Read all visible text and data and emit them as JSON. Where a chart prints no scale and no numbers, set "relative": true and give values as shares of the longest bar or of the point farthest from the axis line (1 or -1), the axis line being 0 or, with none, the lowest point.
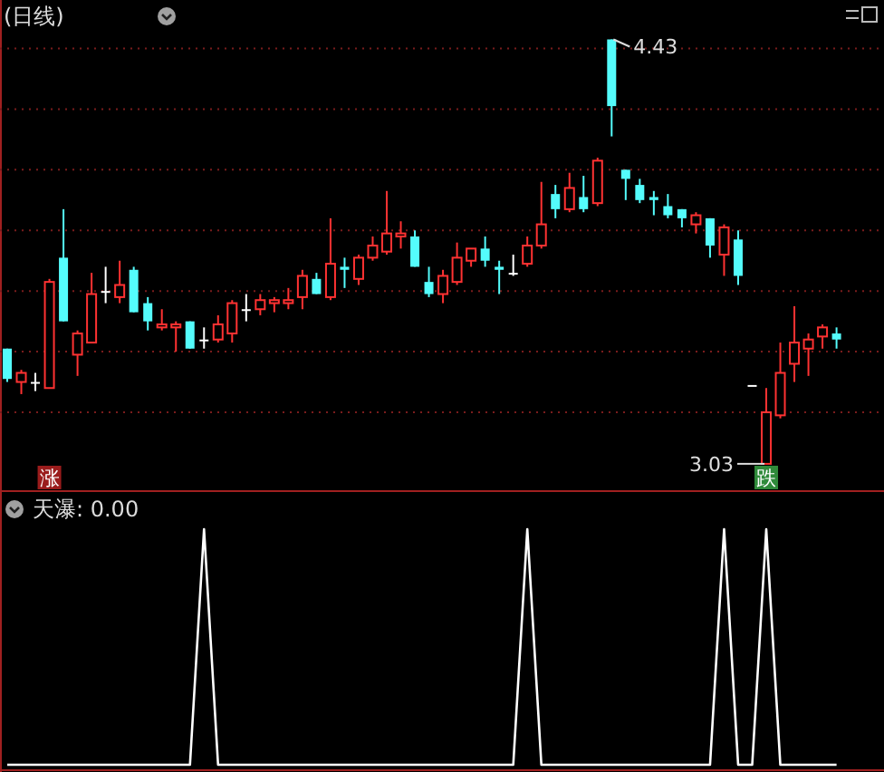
{
  "chart_data": [
    {
      "type": "candlestick",
      "title": "(日线)",
      "categories": [
        null,
        null,
        null,
        null,
        null,
        null,
        null,
        null,
        null,
        null,
        null,
        null,
        null,
        null,
        null,
        null,
        null,
        null,
        null,
        null,
        null,
        null,
        null,
        null,
        null,
        null,
        null,
        null,
        null,
        null,
        null,
        null,
        null,
        null,
        null,
        null,
        null,
        null,
        null,
        null,
        null,
        null,
        null,
        null,
        null,
        null,
        null,
        null,
        null,
        null,
        null,
        null,
        null,
        null,
        null,
        null,
        null,
        null,
        null,
        null
      ],
      "ohlc": [
        [
          3.41,
          3.41,
          3.3,
          3.31
        ],
        [
          3.3,
          3.34,
          3.26,
          3.33
        ],
        [
          3.3,
          3.33,
          3.27,
          3.3
        ],
        [
          3.28,
          3.64,
          3.28,
          3.63
        ],
        [
          3.71,
          3.87,
          3.5,
          3.5
        ],
        [
          3.39,
          3.47,
          3.32,
          3.46
        ],
        [
          3.43,
          3.66,
          3.43,
          3.59
        ],
        [
          3.6,
          3.68,
          3.56,
          3.6
        ],
        [
          3.58,
          3.7,
          3.56,
          3.62
        ],
        [
          3.67,
          3.68,
          3.53,
          3.53
        ],
        [
          3.56,
          3.58,
          3.47,
          3.5
        ],
        [
          3.48,
          3.54,
          3.47,
          3.49
        ],
        [
          3.48,
          3.5,
          3.4,
          3.49
        ],
        [
          3.5,
          3.5,
          3.41,
          3.41
        ],
        [
          3.44,
          3.48,
          3.41,
          3.44
        ],
        [
          3.44,
          3.52,
          3.43,
          3.49
        ],
        [
          3.46,
          3.57,
          3.43,
          3.56
        ],
        [
          3.54,
          3.59,
          3.5,
          3.54
        ],
        [
          3.54,
          3.59,
          3.52,
          3.57
        ],
        [
          3.56,
          3.58,
          3.53,
          3.57
        ],
        [
          3.56,
          3.61,
          3.54,
          3.57
        ],
        [
          3.58,
          3.67,
          3.54,
          3.65
        ],
        [
          3.64,
          3.66,
          3.59,
          3.59
        ],
        [
          3.58,
          3.84,
          3.57,
          3.69
        ],
        [
          3.68,
          3.71,
          3.61,
          3.67
        ],
        [
          3.64,
          3.72,
          3.62,
          3.71
        ],
        [
          3.71,
          3.78,
          3.7,
          3.75
        ],
        [
          3.73,
          3.93,
          3.72,
          3.79
        ],
        [
          3.78,
          3.83,
          3.74,
          3.79
        ],
        [
          3.78,
          3.8,
          3.68,
          3.68
        ],
        [
          3.63,
          3.68,
          3.58,
          3.59
        ],
        [
          3.59,
          3.67,
          3.56,
          3.65
        ],
        [
          3.63,
          3.76,
          3.62,
          3.71
        ],
        [
          3.7,
          3.74,
          3.68,
          3.74
        ],
        [
          3.74,
          3.78,
          3.68,
          3.7
        ],
        [
          3.68,
          3.7,
          3.59,
          3.67
        ],
        [
          3.66,
          3.72,
          3.65,
          3.66
        ],
        [
          3.69,
          3.78,
          3.68,
          3.75
        ],
        [
          3.75,
          3.96,
          3.74,
          3.82
        ],
        [
          3.92,
          3.95,
          3.84,
          3.87
        ],
        [
          3.87,
          3.99,
          3.86,
          3.94
        ],
        [
          3.91,
          3.98,
          3.86,
          3.87
        ],
        [
          3.89,
          4.04,
          3.88,
          4.03
        ],
        [
          4.43,
          4.43,
          4.11,
          4.21
        ],
        [
          4.0,
          4.0,
          3.9,
          3.97
        ],
        [
          3.95,
          3.97,
          3.89,
          3.9
        ],
        [
          3.91,
          3.93,
          3.85,
          3.9
        ],
        [
          3.88,
          3.92,
          3.84,
          3.85
        ],
        [
          3.87,
          3.87,
          3.81,
          3.84
        ],
        [
          3.82,
          3.86,
          3.79,
          3.85
        ],
        [
          3.84,
          3.84,
          3.71,
          3.75
        ],
        [
          3.72,
          3.82,
          3.65,
          3.81
        ],
        [
          3.77,
          3.8,
          3.62,
          3.65
        ],
        [
          3.29,
          3.29,
          3.29,
          3.29
        ],
        [
          3.03,
          3.28,
          3.03,
          3.2
        ],
        [
          3.19,
          3.43,
          3.18,
          3.33
        ],
        [
          3.36,
          3.55,
          3.3,
          3.43
        ],
        [
          3.41,
          3.46,
          3.32,
          3.44
        ],
        [
          3.45,
          3.49,
          3.41,
          3.48
        ],
        [
          3.46,
          3.48,
          3.41,
          3.44
        ]
      ],
      "colors": [
        "#54fcfc",
        "#ff3232",
        "#ffffff",
        "#ff3232",
        "#54fcfc",
        "#ff3232",
        "#ff3232",
        "#ffffff",
        "#ff3232",
        "#54fcfc",
        "#54fcfc",
        "#ff3232",
        "#ff3232",
        "#54fcfc",
        "#ffffff",
        "#ff3232",
        "#ff3232",
        "#ffffff",
        "#ff3232",
        "#ff3232",
        "#ff3232",
        "#ff3232",
        "#54fcfc",
        "#ff3232",
        "#54fcfc",
        "#ff3232",
        "#ff3232",
        "#ff3232",
        "#ff3232",
        "#54fcfc",
        "#54fcfc",
        "#ff3232",
        "#ff3232",
        "#ff3232",
        "#54fcfc",
        "#54fcfc",
        "#ffffff",
        "#ff3232",
        "#ff3232",
        "#54fcfc",
        "#ff3232",
        "#54fcfc",
        "#ff3232",
        "#54fcfc",
        "#54fcfc",
        "#54fcfc",
        "#54fcfc",
        "#54fcfc",
        "#54fcfc",
        "#ff3232",
        "#54fcfc",
        "#ff3232",
        "#54fcfc",
        "#ffffff",
        "#ff3232",
        "#ff3232",
        "#ff3232",
        "#ff3232",
        "#ff3232",
        "#54fcfc"
      ],
      "ylim": [
        2.94,
        4.56
      ],
      "yticks": [
        {
          "value": 3.2,
          "label": null
        },
        {
          "value": 3.4,
          "label": null
        },
        {
          "value": 3.6,
          "label": null
        },
        {
          "value": 3.8,
          "label": null
        },
        {
          "value": 4.0,
          "label": null
        },
        {
          "value": 4.2,
          "label": null
        },
        {
          "value": 4.4,
          "label": null
        }
      ],
      "grid": true,
      "annotations": [
        "4.43",
        "3.03",
        "涨",
        "跌"
      ]
    },
    {
      "type": "line",
      "title": "天瀑: 0.00",
      "relative": true,
      "categories": [
        null,
        null,
        null,
        null,
        null,
        null,
        null,
        null,
        null,
        null,
        null,
        null,
        null,
        null,
        null,
        null,
        null,
        null,
        null,
        null,
        null,
        null,
        null,
        null,
        null,
        null,
        null,
        null,
        null,
        null,
        null,
        null,
        null,
        null,
        null,
        null,
        null,
        null,
        null,
        null,
        null,
        null,
        null,
        null,
        null,
        null,
        null,
        null,
        null,
        null,
        null,
        null,
        null,
        null,
        null,
        null,
        null,
        null,
        null,
        null
      ],
      "series": [
        {
          "color": "#ffffff",
          "values": [
            0,
            0,
            0,
            0,
            0,
            0,
            0,
            0,
            0,
            0,
            0,
            0,
            0,
            0,
            1,
            0,
            0,
            0,
            0,
            0,
            0,
            0,
            0,
            0,
            0,
            0,
            0,
            0,
            0,
            0,
            0,
            0,
            0,
            0,
            0,
            0,
            0,
            1,
            0,
            0,
            0,
            0,
            0,
            0,
            0,
            0,
            0,
            0,
            0,
            0,
            0,
            1,
            0,
            0,
            1,
            0,
            0,
            0,
            0,
            0
          ]
        }
      ]
    }
  ]
}
